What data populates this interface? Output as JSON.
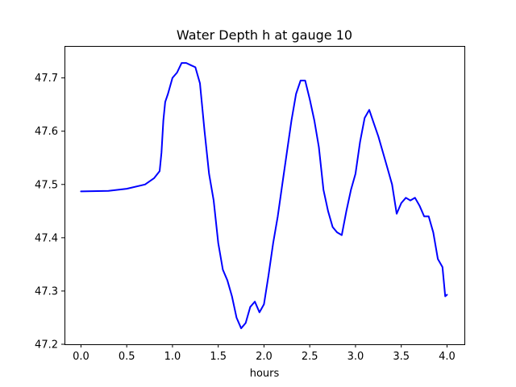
{
  "chart_data": {
    "type": "line",
    "title": "Water Depth h at gauge 10",
    "xlabel": "hours",
    "ylabel": "",
    "xlim": [
      -0.18,
      4.19
    ],
    "ylim": [
      47.2,
      47.76
    ],
    "grid": false,
    "legend": "none",
    "x_ticks": [
      0.0,
      0.5,
      1.0,
      1.5,
      2.0,
      2.5,
      3.0,
      3.5,
      4.0
    ],
    "x_tick_labels": [
      "0.0",
      "0.5",
      "1.0",
      "1.5",
      "2.0",
      "2.5",
      "3.0",
      "3.5",
      "4.0"
    ],
    "y_ticks": [
      47.2,
      47.3,
      47.4,
      47.5,
      47.6,
      47.7
    ],
    "y_tick_labels": [
      "47.2",
      "47.3",
      "47.4",
      "47.5",
      "47.6",
      "47.7"
    ],
    "series": [
      {
        "color": "#0000ff",
        "x": [
          0.0,
          0.3,
          0.5,
          0.7,
          0.8,
          0.86,
          0.88,
          0.9,
          0.92,
          0.95,
          1.0,
          1.05,
          1.1,
          1.15,
          1.2,
          1.25,
          1.3,
          1.35,
          1.4,
          1.45,
          1.5,
          1.55,
          1.6,
          1.65,
          1.7,
          1.75,
          1.8,
          1.85,
          1.9,
          1.95,
          2.0,
          2.05,
          2.1,
          2.15,
          2.2,
          2.25,
          2.3,
          2.35,
          2.4,
          2.45,
          2.5,
          2.55,
          2.6,
          2.65,
          2.7,
          2.75,
          2.8,
          2.85,
          2.9,
          2.95,
          3.0,
          3.05,
          3.1,
          3.15,
          3.2,
          3.25,
          3.3,
          3.35,
          3.4,
          3.45,
          3.5,
          3.55,
          3.6,
          3.65,
          3.7,
          3.75,
          3.8,
          3.85,
          3.9,
          3.95,
          3.98,
          4.0
        ],
        "y": [
          47.487,
          47.488,
          47.492,
          47.5,
          47.512,
          47.525,
          47.56,
          47.62,
          47.655,
          47.67,
          47.7,
          47.71,
          47.728,
          47.728,
          47.724,
          47.72,
          47.69,
          47.6,
          47.52,
          47.47,
          47.39,
          47.34,
          47.32,
          47.29,
          47.25,
          47.23,
          47.24,
          47.27,
          47.28,
          47.26,
          47.275,
          47.33,
          47.39,
          47.44,
          47.5,
          47.56,
          47.62,
          47.67,
          47.695,
          47.695,
          47.66,
          47.62,
          47.57,
          47.49,
          47.45,
          47.42,
          47.41,
          47.405,
          47.45,
          47.49,
          47.52,
          47.58,
          47.625,
          47.64,
          47.615,
          47.59,
          47.56,
          47.53,
          47.5,
          47.445,
          47.465,
          47.475,
          47.47,
          47.475,
          47.46,
          47.44,
          47.44,
          47.41,
          47.36,
          47.345,
          47.29,
          47.293
        ]
      }
    ]
  }
}
